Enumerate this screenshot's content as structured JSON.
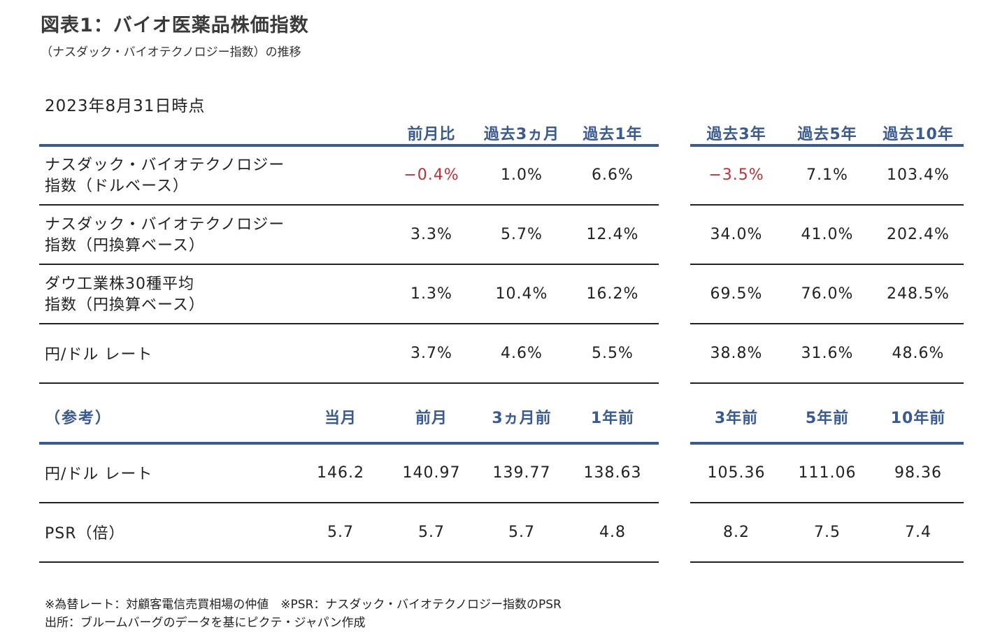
{
  "title": "図表1：バイオ医薬品株価指数",
  "subtitle": "（ナスダック・バイオテクノロジー指数）の推移",
  "date": "2023年8月31日時点",
  "table1": {
    "headers": [
      "前月比",
      "過去3ヵ月",
      "過去1年",
      "過去3年",
      "過去5年",
      "過去10年"
    ],
    "rows": [
      {
        "label1": "ナスダック・バイオテクノロジー",
        "label2": "指数（ドルベース）",
        "values": [
          "−0.4%",
          "1.0%",
          "6.6%",
          "−3.5%",
          "7.1%",
          "103.4%"
        ]
      },
      {
        "label1": "ナスダック・バイオテクノロジー",
        "label2": "指数（円換算ベース）",
        "values": [
          "3.3%",
          "5.7%",
          "12.4%",
          "34.0%",
          "41.0%",
          "202.4%"
        ]
      },
      {
        "label1": "ダウ工業株30種平均",
        "label2": "指数（円換算ベース）",
        "values": [
          "1.3%",
          "10.4%",
          "16.2%",
          "69.5%",
          "76.0%",
          "248.5%"
        ]
      },
      {
        "label1": "円/ドル レート",
        "label2": "",
        "values": [
          "3.7%",
          "4.6%",
          "5.5%",
          "38.8%",
          "31.6%",
          "48.6%"
        ]
      }
    ]
  },
  "table2": {
    "ref_label": "（参考）",
    "headers": [
      "当月",
      "前月",
      "3ヵ月前",
      "1年前",
      "3年前",
      "5年前",
      "10年前"
    ],
    "rows": [
      {
        "label": "円/ドル レート",
        "values": [
          "146.2",
          "140.97",
          "139.77",
          "138.63",
          "105.36",
          "111.06",
          "98.36"
        ]
      },
      {
        "label": "PSR（倍）",
        "values": [
          "5.7",
          "5.7",
          "5.7",
          "4.8",
          "8.2",
          "7.5",
          "7.4"
        ]
      }
    ]
  },
  "notes": {
    "line1": "※為替レート：対顧客電信売買相場の仲値　※PSR：ナスダック・バイオテクノロジー指数のPSR",
    "line2": "出所：ブルームバーグのデータを基にピクテ・ジャパン作成"
  },
  "colors": {
    "accent": "#3b5a8e",
    "negative": "#b3343c"
  }
}
